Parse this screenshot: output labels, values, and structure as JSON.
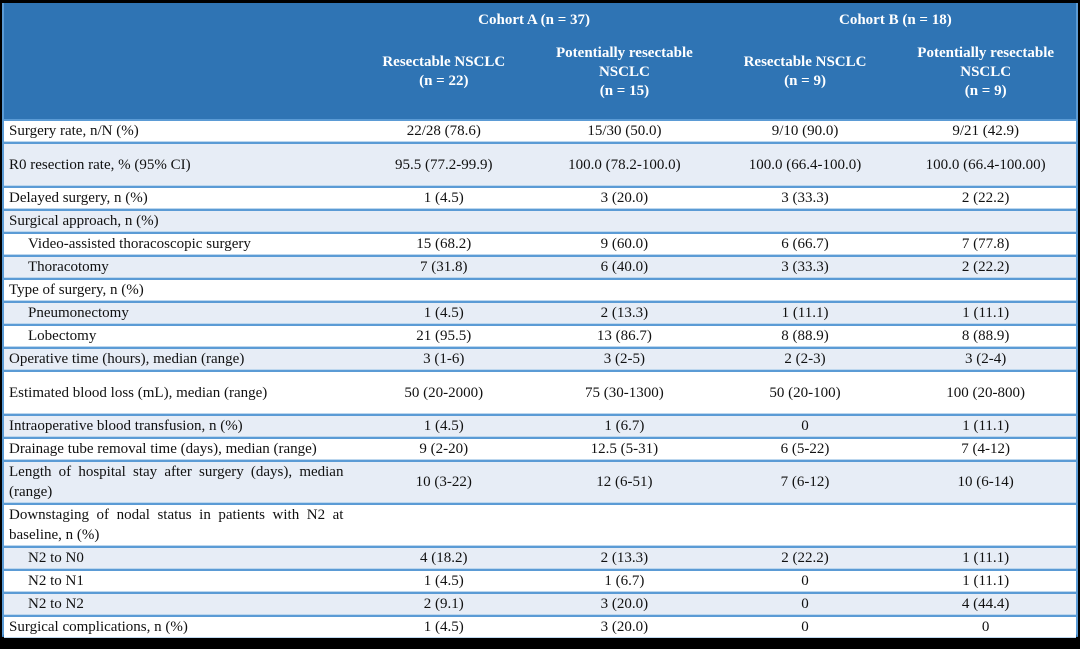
{
  "table": {
    "title_semantics": "Surgery outcomes by cohort",
    "header": {
      "cohort_a": "Cohort A (n = 37)",
      "cohort_b": "Cohort B (n = 18)",
      "columns": [
        {
          "title": "Resectable NSCLC",
          "n": "(n = 22)"
        },
        {
          "title": "Potentially resectable NSCLC",
          "n": "(n = 15)"
        },
        {
          "title": "Resectable NSCLC",
          "n": "(n = 9)"
        },
        {
          "title": "Potentially resectable NSCLC",
          "n": "(n = 9)"
        }
      ]
    },
    "rows": [
      {
        "label": "Surgery rate, n/N (%)",
        "indent": false,
        "values": [
          "22/28 (78.6)",
          "15/30 (50.0)",
          "9/10 (90.0)",
          "9/21 (42.9)"
        ]
      },
      {
        "label": "R0 resection rate, % (95% CI)",
        "indent": false,
        "values": [
          "95.5 (77.2-99.9)",
          "100.0 (78.2-100.0)",
          "100.0 (66.4-100.0)",
          "100.0 (66.4-100.00)"
        ]
      },
      {
        "label": "Delayed surgery, n (%)",
        "indent": false,
        "values": [
          "1 (4.5)",
          "3 (20.0)",
          "3 (33.3)",
          "2 (22.2)"
        ]
      },
      {
        "label": "Surgical approach, n (%)",
        "indent": false,
        "values": [
          "",
          "",
          "",
          ""
        ]
      },
      {
        "label": "Video-assisted thoracoscopic surgery",
        "indent": true,
        "values": [
          "15 (68.2)",
          "9 (60.0)",
          "6 (66.7)",
          "7 (77.8)"
        ]
      },
      {
        "label": "Thoracotomy",
        "indent": true,
        "values": [
          "7 (31.8)",
          "6 (40.0)",
          "3 (33.3)",
          "2 (22.2)"
        ]
      },
      {
        "label": "Type of surgery, n (%)",
        "indent": false,
        "values": [
          "",
          "",
          "",
          ""
        ]
      },
      {
        "label": "Pneumonectomy",
        "indent": true,
        "values": [
          "1 (4.5)",
          "2 (13.3)",
          "1 (11.1)",
          "1 (11.1)"
        ]
      },
      {
        "label": "Lobectomy",
        "indent": true,
        "values": [
          "21 (95.5)",
          "13 (86.7)",
          "8 (88.9)",
          "8 (88.9)"
        ]
      },
      {
        "label": "Operative time (hours), median (range)",
        "indent": false,
        "values": [
          "3 (1-6)",
          "3 (2-5)",
          "2 (2-3)",
          "3 (2-4)"
        ]
      },
      {
        "label": "Estimated blood loss (mL), median (range)",
        "indent": false,
        "values": [
          "50 (20-2000)",
          "75 (30-1300)",
          "50 (20-100)",
          "100 (20-800)"
        ]
      },
      {
        "label": "Intraoperative blood transfusion, n (%)",
        "indent": false,
        "values": [
          "1 (4.5)",
          "1 (6.7)",
          "0",
          "1 (11.1)"
        ]
      },
      {
        "label": "Drainage tube removal time (days), median (range)",
        "indent": false,
        "values": [
          "9 (2-20)",
          "12.5 (5-31)",
          "6 (5-22)",
          "7 (4-12)"
        ]
      },
      {
        "label": "Length of hospital stay after surgery (days), median (range)",
        "indent": false,
        "values": [
          "10 (3-22)",
          "12 (6-51)",
          "7 (6-12)",
          "10 (6-14)"
        ]
      },
      {
        "label": "Downstaging of nodal status in patients with N2 at baseline, n (%)",
        "indent": false,
        "values": [
          "",
          "",
          "",
          ""
        ]
      },
      {
        "label": "N2 to N0",
        "indent": true,
        "values": [
          "4 (18.2)",
          "2 (13.3)",
          "2 (22.2)",
          "1 (11.1)"
        ]
      },
      {
        "label": "N2 to N1",
        "indent": true,
        "values": [
          "1 (4.5)",
          "1 (6.7)",
          "0",
          "1 (11.1)"
        ]
      },
      {
        "label": "N2 to N2",
        "indent": true,
        "values": [
          "2 (9.1)",
          "3 (20.0)",
          "0",
          "4 (44.4)"
        ]
      },
      {
        "label": "Surgical complications, n (%)",
        "indent": false,
        "values": [
          "1 (4.5)",
          "3 (20.0)",
          "0",
          "0"
        ]
      }
    ]
  },
  "colors": {
    "header_bg": "#2F74B4",
    "alt_row_bg": "#E7EDF6",
    "row_border_blue": "#5B9BD5",
    "row_border_light": "#BDD7EE",
    "table_bottom_border": "#2E75B6",
    "header_text": "#FFFFFF",
    "body_text": "#111111",
    "frame_bg": "#000000"
  }
}
